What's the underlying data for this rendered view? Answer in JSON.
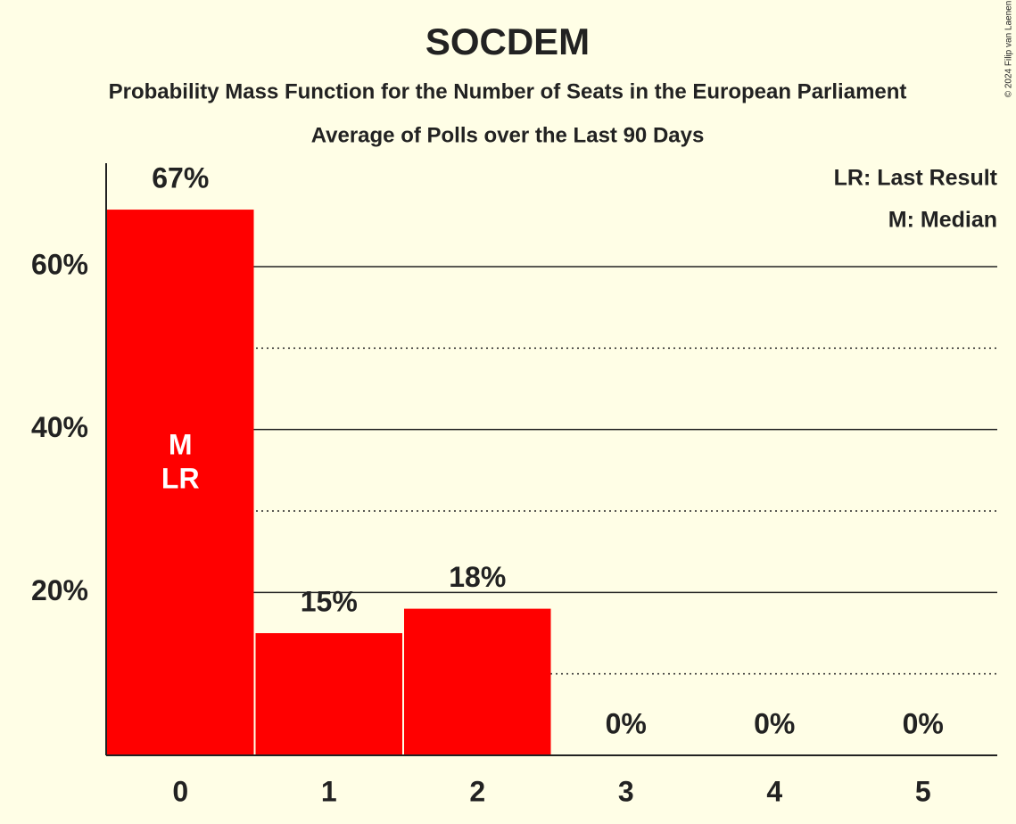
{
  "chart_data": {
    "type": "bar",
    "title": "SOCDEM",
    "subtitle": "Probability Mass Function for the Number of Seats in the European Parliament",
    "subtitle2": "Average of Polls over the Last 90 Days",
    "legend": [
      "LR: Last Result",
      "M: Median"
    ],
    "copyright": "© 2024 Filip van Laenen",
    "categories": [
      "0",
      "1",
      "2",
      "3",
      "4",
      "5"
    ],
    "values": [
      67,
      15,
      18,
      0,
      0,
      0
    ],
    "value_labels": [
      "67%",
      "15%",
      "18%",
      "0%",
      "0%",
      "0%"
    ],
    "color": "#ff0000",
    "annotations": [
      {
        "x": "0",
        "text": "M"
      },
      {
        "x": "0",
        "text": "LR"
      }
    ],
    "ylim": [
      0,
      72.7
    ],
    "yticks": [
      {
        "value": 20,
        "label": "20%"
      },
      {
        "value": 40,
        "label": "40%"
      },
      {
        "value": 60,
        "label": "60%"
      }
    ],
    "minor_yticks": [
      10,
      30,
      50
    ],
    "grid": true
  }
}
